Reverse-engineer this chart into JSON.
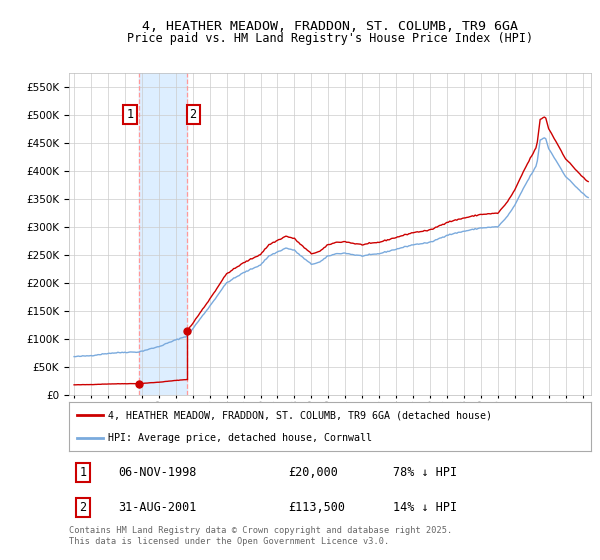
{
  "title_line1": "4, HEATHER MEADOW, FRADDON, ST. COLUMB, TR9 6GA",
  "title_line2": "Price paid vs. HM Land Registry's House Price Index (HPI)",
  "legend_label_red": "4, HEATHER MEADOW, FRADDON, ST. COLUMB, TR9 6GA (detached house)",
  "legend_label_blue": "HPI: Average price, detached house, Cornwall",
  "transaction1_date": "06-NOV-1998",
  "transaction1_price": "£20,000",
  "transaction1_hpi": "78% ↓ HPI",
  "transaction2_date": "31-AUG-2001",
  "transaction2_price": "£113,500",
  "transaction2_hpi": "14% ↓ HPI",
  "footer": "Contains HM Land Registry data © Crown copyright and database right 2025.\nThis data is licensed under the Open Government Licence v3.0.",
  "red_color": "#cc0000",
  "blue_color": "#7aaadd",
  "shaded_color": "#ddeeff",
  "grid_color": "#cccccc",
  "background_color": "#ffffff",
  "ylim": [
    0,
    575000
  ],
  "yticks": [
    0,
    50000,
    100000,
    150000,
    200000,
    250000,
    300000,
    350000,
    400000,
    450000,
    500000,
    550000
  ],
  "xlim_start": 1994.7,
  "xlim_end": 2025.5,
  "transaction1_x": 1998.85,
  "transaction1_y": 20000,
  "transaction2_x": 2001.67,
  "transaction2_y": 113500,
  "shade_x1": 1998.85,
  "shade_x2": 2001.67
}
